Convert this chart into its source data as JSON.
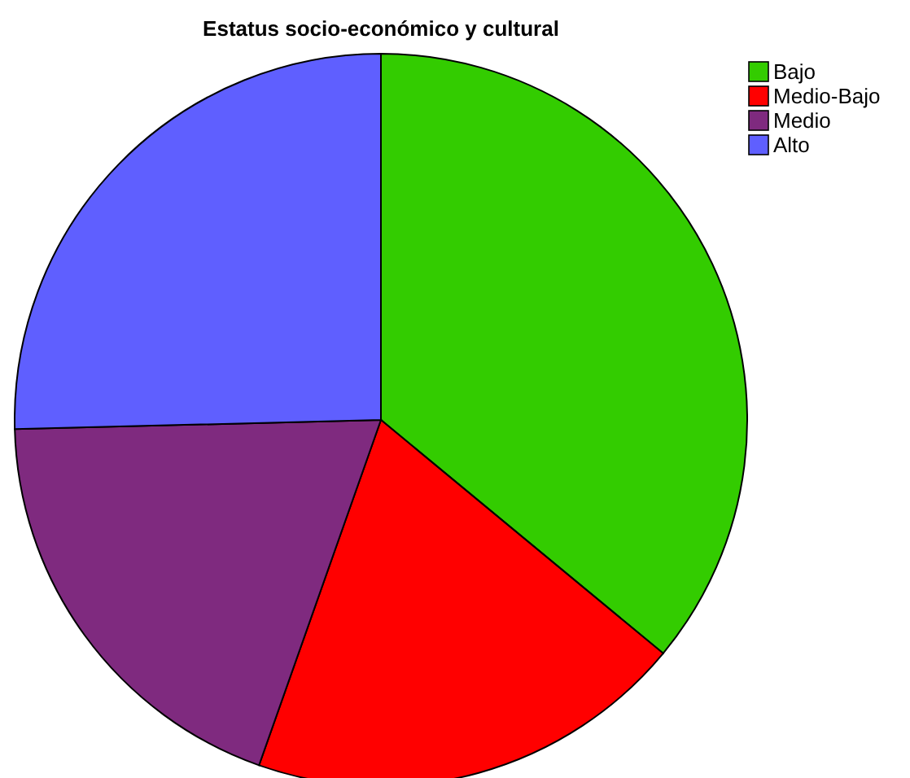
{
  "chart_data": {
    "type": "pie",
    "title": "Estatus socio-económico y cultural",
    "categories": [
      "Bajo",
      "Medio-Bajo",
      "Medio",
      "Alto"
    ],
    "values": [
      36,
      19.4,
      19.2,
      25.4
    ],
    "colors": [
      "#33cc00",
      "#ff0000",
      "#7f2a7f",
      "#5f5fff"
    ],
    "legend": "top right"
  }
}
